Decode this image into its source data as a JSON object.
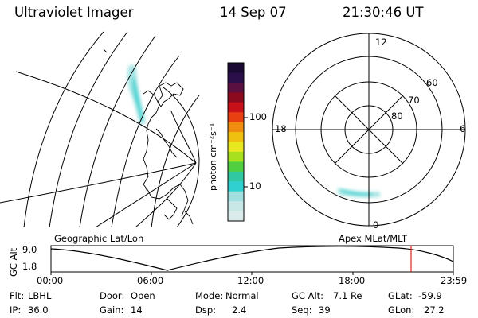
{
  "header": {
    "instrument": "Ultraviolet Imager",
    "date": "14 Sep 07",
    "time": "21:30:46 UT"
  },
  "colorbar": {
    "unit_label": "photon cm⁻²s⁻¹",
    "ticks": [
      "100",
      "10"
    ],
    "colors": [
      "#1a0a33",
      "#2b0f4a",
      "#5a1040",
      "#8c0a1e",
      "#c8101a",
      "#e84010",
      "#f08c10",
      "#f0c010",
      "#e8e820",
      "#a8e020",
      "#50d040",
      "#30c8a0",
      "#30d0d0",
      "#a0e0e0",
      "#c8e8e8",
      "#dcecec"
    ]
  },
  "panels": {
    "left_label": "Geographic Lat/Lon",
    "right_label": "Apex MLat/MLT"
  },
  "polar_plot": {
    "mlt_labels": {
      "top": "12",
      "left": "18",
      "right": "6",
      "bottom": "0"
    },
    "lat_labels": [
      "60",
      "70",
      "80"
    ]
  },
  "altitude_plot": {
    "axis_label": "GC Alt",
    "y_ticks": [
      "9.0",
      "1.8"
    ],
    "x_ticks": [
      "00:00",
      "06:00",
      "12:00",
      "18:00",
      "23:59"
    ],
    "marker_color": "#e02020"
  },
  "info": {
    "row1": [
      {
        "key": "Flt:",
        "value": "LBHL"
      },
      {
        "key": "Door:",
        "value": "Open"
      },
      {
        "key": "Mode:",
        "value": "Normal"
      },
      {
        "key": "GC Alt:",
        "value": "7.1 Re"
      },
      {
        "key": "GLat:",
        "value": "-59.9"
      }
    ],
    "row2": [
      {
        "key": "IP:",
        "value": "36.0"
      },
      {
        "key": "Gain:",
        "value": "14"
      },
      {
        "key": "Dsp:",
        "value": "2.4"
      },
      {
        "key": "Seq:",
        "value": "39"
      },
      {
        "key": "GLon:",
        "value": "27.2"
      }
    ]
  }
}
